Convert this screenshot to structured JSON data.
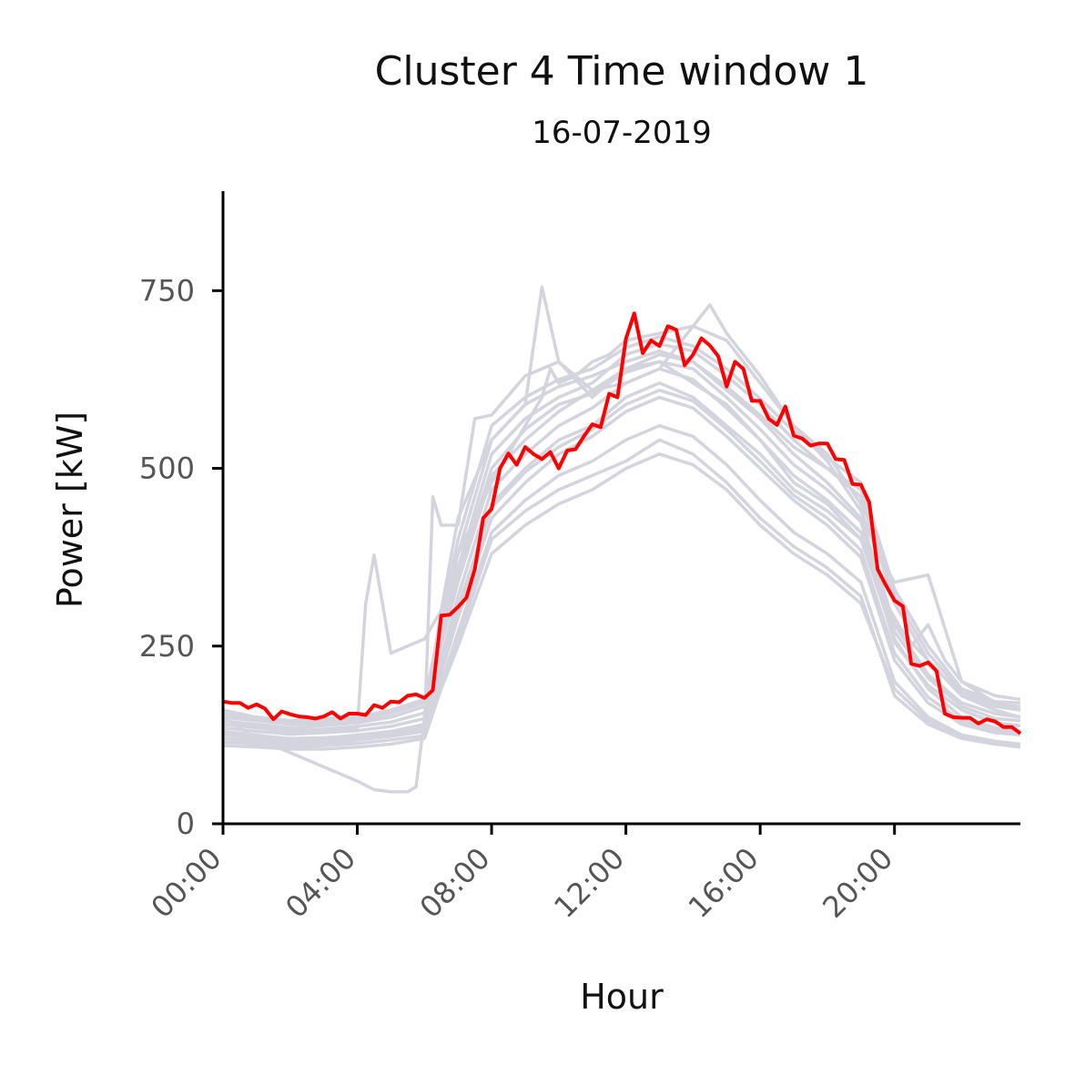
{
  "chart_data": {
    "type": "line",
    "title": "Cluster 4 Time window 1",
    "subtitle": "16-07-2019",
    "xlabel": "Hour",
    "ylabel": "Power [kW]",
    "xlim": [
      0,
      23.75
    ],
    "ylim": [
      0,
      890
    ],
    "xticks": [
      0,
      4,
      8,
      12,
      16,
      20
    ],
    "xtick_labels": [
      "00:00",
      "04:00",
      "08:00",
      "12:00",
      "16:00",
      "20:00"
    ],
    "yticks": [
      0,
      250,
      500,
      750
    ],
    "ytick_labels": [
      "0",
      "250",
      "500",
      "750"
    ],
    "grid": false,
    "legend": "none",
    "colors": {
      "highlight": "#ff0000",
      "background_series": "#d4d4de",
      "axis": "#000000"
    },
    "highlight_series": {
      "date": "16-07-2019",
      "x": [
        0,
        0.25,
        0.5,
        0.75,
        1,
        1.25,
        1.5,
        1.75,
        2,
        2.25,
        2.5,
        2.75,
        3,
        3.25,
        3.5,
        3.75,
        4,
        4.25,
        4.5,
        4.75,
        5,
        5.25,
        5.5,
        5.75,
        6,
        6.25,
        6.5,
        6.75,
        7,
        7.25,
        7.5,
        7.75,
        8,
        8.25,
        8.5,
        8.75,
        9,
        9.25,
        9.5,
        9.75,
        10,
        10.25,
        10.5,
        10.75,
        11,
        11.25,
        11.5,
        11.75,
        12,
        12.25,
        12.5,
        12.75,
        13,
        13.25,
        13.5,
        13.75,
        14,
        14.25,
        14.5,
        14.75,
        15,
        15.25,
        15.5,
        15.75,
        16,
        16.25,
        16.5,
        16.75,
        17,
        17.25,
        17.5,
        17.75,
        18,
        18.25,
        18.5,
        18.75,
        19,
        19.25,
        19.5,
        19.75,
        20,
        20.25,
        20.5,
        20.75,
        21,
        21.25,
        21.5,
        21.75,
        22,
        22.25,
        22.5,
        22.75,
        23,
        23.25,
        23.5,
        23.75
      ],
      "y": [
        172,
        170,
        170,
        163,
        168,
        162,
        147,
        158,
        154,
        151,
        150,
        148,
        151,
        157,
        148,
        155,
        155,
        153,
        167,
        163,
        172,
        171,
        180,
        182,
        177,
        188,
        293,
        294,
        305,
        318,
        358,
        430,
        443,
        500,
        521,
        505,
        530,
        520,
        513,
        523,
        500,
        525,
        527,
        545,
        562,
        558,
        605,
        600,
        682,
        718,
        662,
        680,
        672,
        700,
        695,
        645,
        660,
        683,
        673,
        658,
        615,
        650,
        640,
        595,
        595,
        570,
        561,
        587,
        546,
        542,
        532,
        535,
        535,
        513,
        512,
        478,
        477,
        452,
        358,
        335,
        314,
        306,
        225,
        222,
        227,
        215,
        155,
        150,
        149,
        149,
        141,
        147,
        144,
        136,
        136,
        127
      ]
    },
    "background_series": [
      {
        "x": [
          0,
          1,
          2,
          3,
          4,
          4.25,
          4.5,
          4.75,
          5,
          5.5,
          6,
          6.5,
          7,
          8,
          9,
          9.5,
          9.75,
          10,
          10.5,
          11,
          11.5,
          12,
          13,
          14,
          15,
          16,
          17,
          18,
          19,
          19.5,
          20,
          20.5,
          21,
          21.5,
          22,
          23,
          23.75
        ],
        "y": [
          140,
          135,
          130,
          132,
          135,
          310,
          378,
          310,
          240,
          250,
          260,
          300,
          380,
          480,
          560,
          600,
          640,
          620,
          630,
          650,
          660,
          680,
          690,
          700,
          680,
          620,
          560,
          520,
          450,
          330,
          290,
          250,
          280,
          230,
          200,
          170,
          160
        ]
      },
      {
        "x": [
          0,
          1,
          2,
          3,
          3.5,
          4,
          4.5,
          5,
          5.5,
          5.75,
          6,
          6.5,
          7,
          8,
          9,
          9.5,
          10,
          11,
          12,
          13,
          14,
          15,
          16,
          17,
          18,
          19,
          20,
          21,
          22,
          23,
          23.75
        ],
        "y": [
          150,
          120,
          100,
          80,
          70,
          60,
          48,
          45,
          45,
          52,
          150,
          300,
          430,
          540,
          590,
          755,
          650,
          600,
          640,
          650,
          620,
          590,
          540,
          480,
          450,
          400,
          280,
          230,
          180,
          160,
          150
        ]
      },
      {
        "x": [
          0,
          1,
          2,
          3,
          4,
          5,
          6,
          6.25,
          6.5,
          7,
          7.5,
          8,
          9,
          10,
          11,
          12,
          13,
          14,
          14.5,
          15,
          16,
          17,
          18,
          19,
          19.5,
          20,
          21,
          22,
          23,
          23.75
        ],
        "y": [
          120,
          115,
          110,
          112,
          118,
          125,
          135,
          460,
          420,
          420,
          570,
          575,
          630,
          650,
          610,
          620,
          640,
          700,
          730,
          690,
          630,
          560,
          510,
          440,
          380,
          340,
          350,
          200,
          180,
          175
        ]
      },
      {
        "x": [
          0,
          1,
          2,
          3,
          4,
          5,
          6,
          7,
          8,
          9,
          10,
          11,
          12,
          13,
          14,
          15,
          16,
          17,
          18,
          19,
          20,
          21,
          22,
          23,
          23.75
        ],
        "y": [
          130,
          125,
          118,
          120,
          125,
          130,
          140,
          300,
          450,
          500,
          540,
          560,
          600,
          620,
          600,
          560,
          520,
          470,
          440,
          400,
          260,
          190,
          150,
          135,
          130
        ]
      },
      {
        "x": [
          0,
          1,
          2,
          3,
          4,
          5,
          6,
          7,
          8,
          9,
          10,
          11,
          12,
          13,
          14,
          15,
          16,
          17,
          18,
          19,
          20,
          21,
          22,
          23,
          23.75
        ],
        "y": [
          110,
          108,
          105,
          105,
          108,
          112,
          120,
          260,
          400,
          440,
          470,
          490,
          510,
          540,
          520,
          480,
          430,
          390,
          360,
          320,
          180,
          140,
          120,
          112,
          108
        ]
      },
      {
        "x": [
          0,
          1,
          2,
          3,
          4,
          5,
          6,
          7,
          8,
          9,
          10,
          11,
          12,
          13,
          14,
          15,
          16,
          17,
          18,
          19,
          20,
          21,
          22,
          23,
          23.75
        ],
        "y": [
          145,
          140,
          135,
          138,
          142,
          150,
          165,
          340,
          490,
          540,
          580,
          610,
          640,
          660,
          650,
          610,
          570,
          520,
          480,
          430,
          280,
          210,
          170,
          155,
          150
        ]
      },
      {
        "x": [
          0,
          1,
          2,
          3,
          4,
          5,
          6,
          7,
          8,
          9,
          10,
          11,
          12,
          13,
          14,
          15,
          16,
          17,
          18,
          19,
          20,
          21,
          22,
          23,
          23.75
        ],
        "y": [
          125,
          122,
          118,
          118,
          121,
          126,
          133,
          290,
          430,
          480,
          520,
          545,
          580,
          600,
          585,
          545,
          500,
          455,
          420,
          375,
          230,
          170,
          140,
          128,
          125
        ]
      },
      {
        "x": [
          0,
          1,
          2,
          3,
          4,
          5,
          6,
          7,
          8,
          9,
          10,
          11,
          12,
          13,
          14,
          15,
          16,
          17,
          18,
          19,
          20,
          21,
          22,
          23,
          23.75
        ],
        "y": [
          160,
          150,
          145,
          148,
          150,
          160,
          175,
          360,
          520,
          570,
          600,
          620,
          660,
          675,
          665,
          630,
          590,
          540,
          500,
          460,
          310,
          230,
          180,
          165,
          160
        ]
      },
      {
        "x": [
          0,
          1,
          2,
          3,
          4,
          5,
          6,
          7,
          8,
          9,
          10,
          11,
          12,
          13,
          14,
          15,
          16,
          17,
          18,
          19,
          20,
          21,
          22,
          23,
          23.75
        ],
        "y": [
          115,
          112,
          108,
          110,
          113,
          118,
          124,
          270,
          410,
          455,
          490,
          510,
          540,
          560,
          545,
          505,
          455,
          410,
          380,
          340,
          200,
          150,
          125,
          116,
          112
        ]
      },
      {
        "x": [
          0,
          1,
          2,
          3,
          4,
          5,
          6,
          7,
          8,
          9,
          10,
          11,
          12,
          13,
          14,
          15,
          16,
          17,
          18,
          19,
          20,
          21,
          22,
          23,
          23.75
        ],
        "y": [
          135,
          130,
          126,
          128,
          131,
          137,
          148,
          320,
          470,
          520,
          560,
          585,
          620,
          640,
          625,
          585,
          540,
          490,
          455,
          410,
          255,
          195,
          160,
          142,
          138
        ]
      },
      {
        "x": [
          0,
          1,
          2,
          3,
          4,
          5,
          6,
          7,
          8,
          9,
          10,
          11,
          12,
          13,
          14,
          15,
          16,
          17,
          18,
          19,
          20,
          21,
          22,
          23,
          23.75
        ],
        "y": [
          150,
          145,
          140,
          142,
          146,
          155,
          170,
          380,
          540,
          590,
          615,
          630,
          650,
          665,
          650,
          615,
          575,
          530,
          500,
          470,
          320,
          240,
          185,
          168,
          165
        ]
      },
      {
        "x": [
          0,
          1,
          2,
          3,
          4,
          5,
          6,
          7,
          8,
          9,
          10,
          11,
          12,
          13,
          14,
          15,
          16,
          17,
          18,
          19,
          20,
          21,
          22,
          23,
          23.75
        ],
        "y": [
          120,
          118,
          114,
          115,
          118,
          123,
          130,
          250,
          380,
          420,
          450,
          470,
          500,
          520,
          505,
          470,
          420,
          380,
          350,
          310,
          190,
          145,
          122,
          113,
          110
        ]
      },
      {
        "x": [
          0,
          1,
          2,
          3,
          4,
          5,
          6,
          7,
          8,
          9,
          10,
          11,
          12,
          13,
          14,
          15,
          16,
          17,
          18,
          19,
          20,
          21,
          22,
          23,
          23.75
        ],
        "y": [
          140,
          136,
          131,
          133,
          137,
          143,
          156,
          350,
          500,
          555,
          590,
          605,
          635,
          650,
          640,
          600,
          555,
          505,
          470,
          425,
          270,
          205,
          165,
          148,
          145
        ]
      },
      {
        "x": [
          0,
          1,
          2,
          3,
          4,
          5,
          6,
          7,
          8,
          9,
          10,
          11,
          12,
          13,
          14,
          15,
          16,
          17,
          18,
          19,
          20,
          21,
          22,
          23,
          23.75
        ],
        "y": [
          128,
          124,
          120,
          121,
          124,
          129,
          137,
          305,
          445,
          495,
          530,
          555,
          590,
          610,
          595,
          555,
          510,
          462,
          430,
          385,
          240,
          178,
          145,
          131,
          128
        ]
      },
      {
        "x": [
          0,
          1,
          2,
          3,
          4,
          5,
          6,
          7,
          8,
          9,
          10,
          11,
          12,
          13,
          14,
          15,
          16,
          17,
          18,
          19,
          20,
          21,
          22,
          23,
          23.75
        ],
        "y": [
          155,
          148,
          142,
          145,
          150,
          158,
          172,
          400,
          560,
          600,
          625,
          640,
          670,
          685,
          672,
          640,
          598,
          552,
          515,
          480,
          330,
          250,
          190,
          172,
          170
        ]
      }
    ]
  }
}
